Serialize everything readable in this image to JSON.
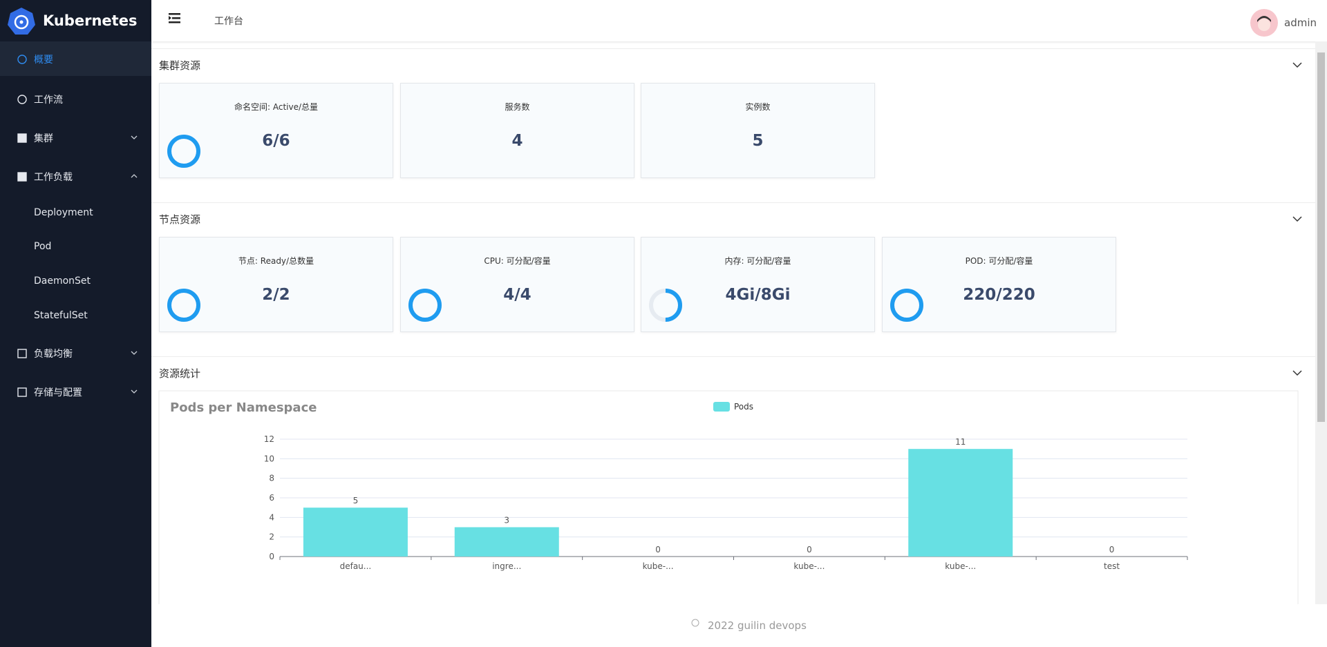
{
  "sidebar": {
    "brand": "Kubernetes",
    "menu": [
      "概要",
      "工作流",
      "集群",
      "工作负载",
      "Deployment",
      "Pod",
      "DaemonSet",
      "StatefulSet",
      "负载均衡",
      "存储与配置"
    ]
  },
  "header": {
    "breadcrumb": "工作台",
    "user": "admin"
  },
  "sections": [
    {
      "title": "集群资源",
      "cards": [
        {
          "title": "命名空间: Active/总量",
          "value": "6/6",
          "used": 6,
          "total": 6
        },
        {
          "title": "服务数",
          "value": 4
        },
        {
          "title": "实例数",
          "value": 5
        }
      ]
    },
    {
      "title": "节点资源",
      "cards": [
        {
          "title": "节点: Ready/总数量",
          "value": "2/2",
          "used": 2,
          "total": 2
        },
        {
          "title": "CPU: 可分配/容量",
          "value": "4/4",
          "used": 4,
          "total": 4
        },
        {
          "title": "内存: 可分配/容量",
          "value": "4Gi/8Gi",
          "used": 4,
          "total": 8
        },
        {
          "title": "POD: 可分配/容量",
          "value": "220/220",
          "used": 220,
          "total": 220
        }
      ]
    },
    {
      "title": "资源统计"
    }
  ],
  "chart_data": {
    "type": "bar",
    "title": "Pods per Namespace",
    "categories": [
      "defau...",
      "ingre...",
      "kube-...",
      "kube-...",
      "kube-...",
      "test"
    ],
    "series": [
      {
        "name": "Pods",
        "color": "#67e0e3",
        "values": [
          5,
          3,
          0,
          0,
          11,
          0
        ]
      }
    ],
    "ylim": [
      0,
      12
    ],
    "yticks": [
      0,
      2,
      4,
      6,
      8,
      10,
      12
    ],
    "grid": true
  },
  "footer": "2022 guilin devops"
}
